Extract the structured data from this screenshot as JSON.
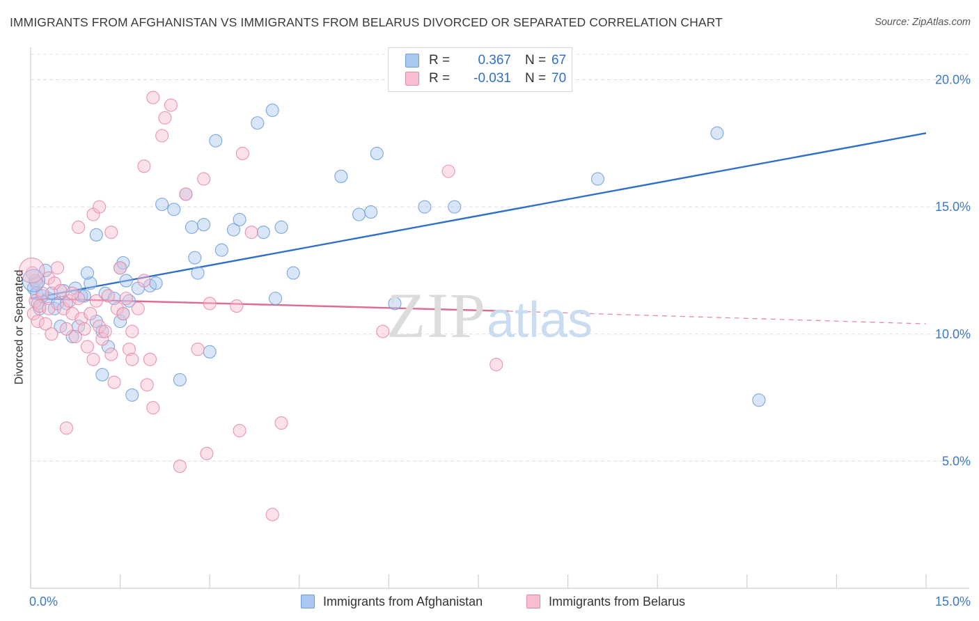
{
  "title": "IMMIGRANTS FROM AFGHANISTAN VS IMMIGRANTS FROM BELARUS DIVORCED OR SEPARATED CORRELATION CHART",
  "source": "Source: ZipAtlas.com",
  "watermark": {
    "zip": "ZIP",
    "atlas": "atlas"
  },
  "legend": {
    "rows": [
      {
        "r_label": "R =",
        "r_value": "0.367",
        "n_label": "N =",
        "n_value": "67",
        "color": "#a9c8f0",
        "border": "#6f9edb"
      },
      {
        "r_label": "R =",
        "r_value": "-0.031",
        "n_label": "N =",
        "n_value": "70",
        "color": "#f7bfd0",
        "border": "#e88aa6"
      }
    ]
  },
  "bottom_legend": [
    {
      "label": "Immigrants from Afghanistan",
      "color": "#a9c8f0",
      "border": "#6f9edb"
    },
    {
      "label": "Immigrants from Belarus",
      "color": "#f7bfd0",
      "border": "#e88aa6"
    }
  ],
  "chart_data": {
    "type": "scatter",
    "title": "IMMIGRANTS FROM AFGHANISTAN VS IMMIGRANTS FROM BELARUS DIVORCED OR SEPARATED CORRELATION CHART",
    "xlabel": "",
    "ylabel": "Divorced or Separated",
    "xlim": [
      0,
      15
    ],
    "ylim": [
      0,
      21
    ],
    "x_tick_labels": [
      "0.0%",
      "15.0%"
    ],
    "y_ticks": [
      5,
      10,
      15,
      20
    ],
    "y_tick_labels": [
      "5.0%",
      "10.0%",
      "15.0%",
      "20.0%"
    ],
    "grid": true,
    "series": [
      {
        "name": "Immigrants from Afghanistan",
        "color": "#6f9edb",
        "fill": "#a9c8f0",
        "trend": {
          "x": [
            0,
            15
          ],
          "y": [
            11.4,
            17.9
          ],
          "style": "solid",
          "color": "#2f6fc9"
        },
        "points": [
          [
            0.05,
            11.8
          ],
          [
            0.08,
            12.1
          ],
          [
            0.1,
            11.6
          ],
          [
            0.12,
            11.2
          ],
          [
            0.15,
            11.0
          ],
          [
            0.2,
            11.5
          ],
          [
            0.25,
            12.5
          ],
          [
            0.3,
            11.4
          ],
          [
            0.35,
            11.6
          ],
          [
            0.4,
            11.0
          ],
          [
            0.45,
            11.2
          ],
          [
            0.5,
            10.3
          ],
          [
            0.55,
            11.7
          ],
          [
            0.6,
            11.2
          ],
          [
            0.7,
            9.9
          ],
          [
            0.75,
            11.8
          ],
          [
            0.8,
            10.3
          ],
          [
            0.85,
            11.5
          ],
          [
            1.0,
            12.0
          ],
          [
            1.1,
            10.5
          ],
          [
            1.25,
            11.6
          ],
          [
            0.9,
            11.5
          ],
          [
            0.95,
            12.4
          ],
          [
            1.2,
            10.1
          ],
          [
            1.3,
            9.5
          ],
          [
            1.4,
            11.4
          ],
          [
            1.5,
            10.5
          ],
          [
            1.55,
            10.8
          ],
          [
            1.6,
            12.1
          ],
          [
            1.65,
            11.3
          ],
          [
            1.2,
            8.4
          ],
          [
            1.7,
            7.6
          ],
          [
            1.5,
            12.6
          ],
          [
            1.55,
            12.8
          ],
          [
            1.8,
            11.8
          ],
          [
            2.0,
            11.9
          ],
          [
            2.1,
            12.0
          ],
          [
            2.2,
            15.1
          ],
          [
            2.4,
            14.9
          ],
          [
            2.5,
            8.2
          ],
          [
            2.7,
            14.2
          ],
          [
            2.75,
            13.0
          ],
          [
            2.8,
            12.4
          ],
          [
            2.9,
            14.3
          ],
          [
            3.0,
            9.3
          ],
          [
            3.1,
            17.6
          ],
          [
            3.2,
            13.3
          ],
          [
            3.4,
            14.1
          ],
          [
            3.5,
            14.5
          ],
          [
            3.9,
            14.0
          ],
          [
            4.1,
            11.4
          ],
          [
            4.2,
            14.2
          ],
          [
            3.8,
            18.3
          ],
          [
            4.05,
            18.8
          ],
          [
            4.4,
            12.4
          ],
          [
            5.2,
            16.2
          ],
          [
            5.5,
            14.7
          ],
          [
            5.7,
            14.8
          ],
          [
            5.8,
            17.1
          ],
          [
            6.1,
            11.2
          ],
          [
            6.6,
            15.0
          ],
          [
            7.1,
            15.0
          ],
          [
            9.5,
            16.1
          ],
          [
            11.5,
            17.9
          ],
          [
            12.2,
            7.4
          ],
          [
            1.1,
            13.9
          ],
          [
            2.6,
            15.5
          ]
        ]
      },
      {
        "name": "Immigrants from Belarus",
        "color": "#e88aa6",
        "fill": "#f7bfd0",
        "trend": {
          "x": [
            0,
            8
          ],
          "y": [
            11.4,
            10.9
          ],
          "style": "solid",
          "color": "#e06b90",
          "dashed_extension": {
            "x": [
              8,
              15
            ],
            "y": [
              10.9,
              10.4
            ]
          }
        },
        "points": [
          [
            0.03,
            12.4
          ],
          [
            0.05,
            10.8
          ],
          [
            0.08,
            11.3
          ],
          [
            0.1,
            12.0
          ],
          [
            0.12,
            10.5
          ],
          [
            0.15,
            11.1
          ],
          [
            0.2,
            11.6
          ],
          [
            0.25,
            10.4
          ],
          [
            0.3,
            12.2
          ],
          [
            0.35,
            10.0
          ],
          [
            0.4,
            12.0
          ],
          [
            0.45,
            12.6
          ],
          [
            0.5,
            11.7
          ],
          [
            0.55,
            11.0
          ],
          [
            0.6,
            10.2
          ],
          [
            0.65,
            11.3
          ],
          [
            0.7,
            10.8
          ],
          [
            0.75,
            9.9
          ],
          [
            0.8,
            11.4
          ],
          [
            0.85,
            10.6
          ],
          [
            0.9,
            10.2
          ],
          [
            0.95,
            9.5
          ],
          [
            1.0,
            10.8
          ],
          [
            1.05,
            9.0
          ],
          [
            1.1,
            11.3
          ],
          [
            1.15,
            10.3
          ],
          [
            1.2,
            9.8
          ],
          [
            1.25,
            10.1
          ],
          [
            1.3,
            11.5
          ],
          [
            1.35,
            9.2
          ],
          [
            1.45,
            11.0
          ],
          [
            1.5,
            12.6
          ],
          [
            1.6,
            11.4
          ],
          [
            1.65,
            9.4
          ],
          [
            1.7,
            10.1
          ],
          [
            1.8,
            11.0
          ],
          [
            1.9,
            12.1
          ],
          [
            2.0,
            9.0
          ],
          [
            2.05,
            7.1
          ],
          [
            1.95,
            8.0
          ],
          [
            0.8,
            14.2
          ],
          [
            1.05,
            14.7
          ],
          [
            1.15,
            15.0
          ],
          [
            1.35,
            14.0
          ],
          [
            1.9,
            16.6
          ],
          [
            2.2,
            17.8
          ],
          [
            2.25,
            18.5
          ],
          [
            2.35,
            19.0
          ],
          [
            2.05,
            19.3
          ],
          [
            2.6,
            15.5
          ],
          [
            2.9,
            16.1
          ],
          [
            3.0,
            11.2
          ],
          [
            2.8,
            9.4
          ],
          [
            2.95,
            5.3
          ],
          [
            2.5,
            4.8
          ],
          [
            3.45,
            11.1
          ],
          [
            3.5,
            6.2
          ],
          [
            3.55,
            17.1
          ],
          [
            3.7,
            14.0
          ],
          [
            4.2,
            6.5
          ],
          [
            4.05,
            2.9
          ],
          [
            5.9,
            10.1
          ],
          [
            7.0,
            16.4
          ],
          [
            7.8,
            8.8
          ],
          [
            0.3,
            11.0
          ],
          [
            0.7,
            11.6
          ],
          [
            1.4,
            8.1
          ],
          [
            1.55,
            10.8
          ],
          [
            1.7,
            9.0
          ],
          [
            0.6,
            6.3
          ]
        ]
      }
    ]
  }
}
